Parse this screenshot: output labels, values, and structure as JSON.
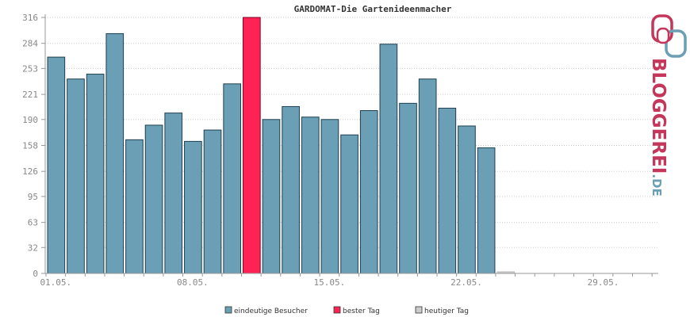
{
  "chart_data": {
    "type": "bar",
    "title": "GARDOMAT-Die Gartenideenmacher",
    "ylim": [
      0,
      316
    ],
    "y_ticks": [
      0,
      32,
      63,
      95,
      126,
      158,
      190,
      221,
      253,
      284,
      316
    ],
    "x_tick_labels": [
      "01.05.",
      "08.05.",
      "15.05.",
      "22.05.",
      "29.05."
    ],
    "x_tick_days": [
      1,
      8,
      15,
      22,
      29
    ],
    "days_in_month": 31,
    "grid": true,
    "legend_position": "bottom",
    "series": [
      {
        "name": "eindeutige Besucher",
        "x": [
          1,
          2,
          3,
          4,
          5,
          6,
          7,
          8,
          9,
          10,
          11,
          12,
          13,
          14,
          15,
          16,
          17,
          18,
          19,
          20,
          21,
          22,
          23,
          24,
          25,
          26,
          27,
          28,
          29,
          30,
          31
        ],
        "values": [
          267,
          240,
          246,
          296,
          165,
          183,
          198,
          163,
          177,
          234,
          316,
          190,
          206,
          193,
          190,
          171,
          201,
          283,
          210,
          240,
          204,
          182,
          155,
          2,
          0,
          0,
          0,
          0,
          0,
          0,
          0
        ]
      }
    ],
    "best_day": 11,
    "today": 24,
    "colors": {
      "visitors": "#6a9fb5",
      "best_day": "#ff2255",
      "today": "#cccccc",
      "grid": "#cccccc",
      "axis": "#999999"
    }
  },
  "legend": [
    {
      "label": "eindeutige Besucher",
      "color": "#6a9fb5"
    },
    {
      "label": "bester Tag",
      "color": "#ff2255"
    },
    {
      "label": "heutiger Tag",
      "color": "#cccccc"
    }
  ],
  "logo": {
    "text": "BLOGGEREI",
    "suffix": ".DE",
    "color": "#c4365a",
    "suffix_color": "#6a9fb5"
  }
}
